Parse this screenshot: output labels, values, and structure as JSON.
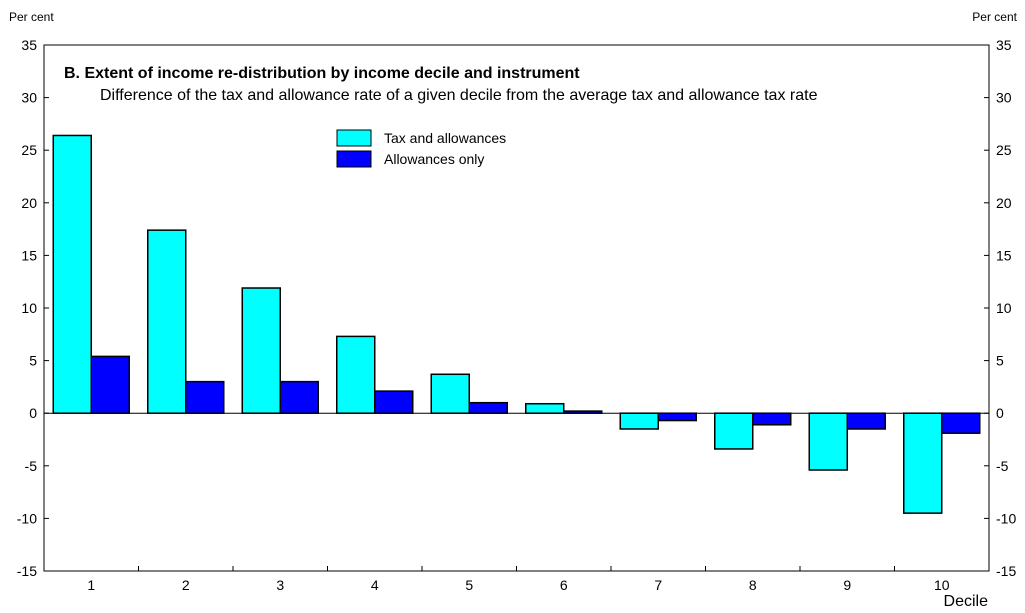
{
  "chart_data": {
    "type": "bar",
    "title": "B.  Extent of income re-distribution by income decile and instrument",
    "subtitle": "Difference of the tax and allowance rate of a given decile from the average tax and allowance tax rate",
    "unit_left": "Per cent",
    "unit_right": "Per cent",
    "xlabel": "Decile",
    "categories": [
      "1",
      "2",
      "3",
      "4",
      "5",
      "6",
      "7",
      "8",
      "9",
      "10"
    ],
    "series": [
      {
        "name": "Tax and allowances",
        "color": "#00ffff",
        "values": [
          26.4,
          17.4,
          11.9,
          7.3,
          3.7,
          0.9,
          -1.5,
          -3.4,
          -5.4,
          -9.5
        ]
      },
      {
        "name": "Allowances only",
        "color": "#0000ff",
        "values": [
          5.4,
          3.0,
          3.0,
          2.1,
          1.0,
          0.2,
          -0.7,
          -1.1,
          -1.5,
          -1.9
        ]
      }
    ],
    "ylim": [
      -15,
      35
    ],
    "yticks": [
      -15,
      -10,
      -5,
      0,
      5,
      10,
      15,
      20,
      25,
      30,
      35
    ],
    "ytick_labels": [
      "-15",
      "-10",
      "-5",
      "0",
      "5",
      "10",
      "15",
      "20",
      "25",
      "30",
      "35"
    ],
    "grid": false,
    "legend_position": "top-center"
  }
}
